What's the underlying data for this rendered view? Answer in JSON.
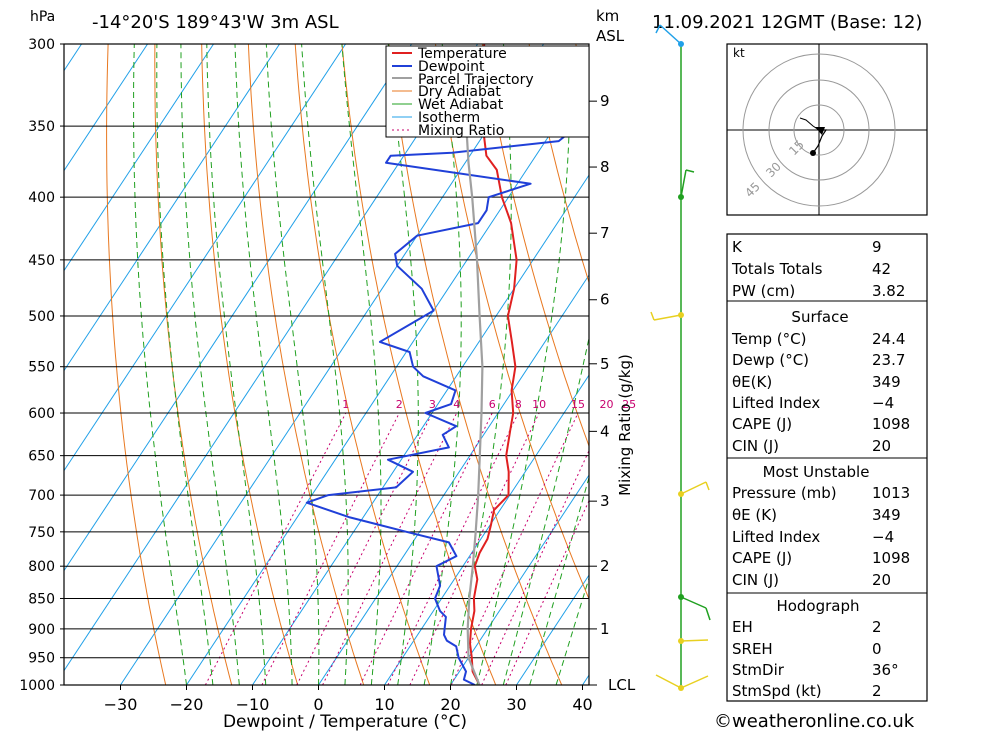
{
  "header": {
    "hpa_label": "hPa",
    "location": "-14°20'S 189°43'W 3m ASL",
    "km_label": "km",
    "asl_label": "ASL",
    "datetime": "11.09.2021 12GMT (Base: 12)"
  },
  "chart_data": {
    "type": "line",
    "title": "-14°20'S 189°43'W 3m ASL",
    "xlabel": "Dewpoint / Temperature (°C)",
    "ylabel": "hPa",
    "right_axis_label": "Mixing Ratio (g/kg)",
    "xlim": [
      -40,
      40
    ],
    "ylim": [
      1000,
      300
    ],
    "x_ticks": [
      "−30",
      "−20",
      "−10",
      "0",
      "10",
      "20",
      "30",
      "40"
    ],
    "x_tick_values": [
      -30,
      -20,
      -10,
      0,
      10,
      20,
      30,
      40
    ],
    "pressure_ticks": [
      300,
      350,
      400,
      450,
      500,
      550,
      600,
      650,
      700,
      750,
      800,
      850,
      900,
      950,
      1000
    ],
    "km_ticks": [
      {
        "label": "9",
        "p": 334
      },
      {
        "label": "8",
        "p": 378
      },
      {
        "label": "7",
        "p": 428
      },
      {
        "label": "6",
        "p": 485
      },
      {
        "label": "5",
        "p": 547
      },
      {
        "label": "4",
        "p": 621
      },
      {
        "label": "3",
        "p": 708
      },
      {
        "label": "2",
        "p": 800
      },
      {
        "label": "1",
        "p": 900
      },
      {
        "label": "LCL",
        "p": 1000
      }
    ],
    "mixing_ratio_labels": [
      "1",
      "2",
      "3",
      "4",
      "6",
      "8",
      "10",
      "15",
      "20",
      "25"
    ],
    "mixing_ratio_values": [
      1,
      2,
      3,
      4,
      6,
      8,
      10,
      15,
      20,
      25
    ],
    "legend": [
      "Temperature",
      "Dewpoint",
      "Parcel Trajectory",
      "Dry Adiabat",
      "Wet Adiabat",
      "Isotherm",
      "Mixing Ratio"
    ],
    "series": [
      {
        "name": "Temperature",
        "color": "#e02020",
        "points": [
          [
            1000,
            24.4
          ],
          [
            975,
            22
          ],
          [
            950,
            20.5
          ],
          [
            925,
            18.8
          ],
          [
            900,
            17.5
          ],
          [
            870,
            16.2
          ],
          [
            850,
            14.9
          ],
          [
            820,
            13.5
          ],
          [
            800,
            11.8
          ],
          [
            780,
            11.2
          ],
          [
            760,
            11
          ],
          [
            740,
            10.1
          ],
          [
            720,
            9.1
          ],
          [
            700,
            9.8
          ],
          [
            670,
            7.5
          ],
          [
            650,
            5.5
          ],
          [
            620,
            3.6
          ],
          [
            600,
            2.3
          ],
          [
            575,
            -0.2
          ],
          [
            550,
            -2
          ],
          [
            525,
            -5
          ],
          [
            500,
            -8.2
          ],
          [
            475,
            -10
          ],
          [
            450,
            -12.5
          ],
          [
            420,
            -17
          ],
          [
            400,
            -21
          ],
          [
            380,
            -24.5
          ],
          [
            370,
            -27.5
          ],
          [
            350,
            -31
          ],
          [
            325,
            -35
          ],
          [
            300,
            -39
          ]
        ]
      },
      {
        "name": "Dewpoint",
        "color": "#2040d8",
        "points": [
          [
            1000,
            23.7
          ],
          [
            990,
            21.5
          ],
          [
            975,
            21
          ],
          [
            950,
            18.5
          ],
          [
            930,
            17
          ],
          [
            920,
            15
          ],
          [
            910,
            14
          ],
          [
            900,
            13.5
          ],
          [
            880,
            12.5
          ],
          [
            870,
            11
          ],
          [
            860,
            10
          ],
          [
            850,
            9
          ],
          [
            830,
            8.5
          ],
          [
            800,
            6
          ],
          [
            785,
            8
          ],
          [
            765,
            5.5
          ],
          [
            750,
            -2
          ],
          [
            730,
            -12
          ],
          [
            710,
            -20
          ],
          [
            700,
            -17.5
          ],
          [
            690,
            -8
          ],
          [
            670,
            -7
          ],
          [
            655,
            -12
          ],
          [
            640,
            -4
          ],
          [
            625,
            -6.2
          ],
          [
            615,
            -5
          ],
          [
            600,
            -11
          ],
          [
            590,
            -8
          ],
          [
            575,
            -8.7
          ],
          [
            560,
            -15
          ],
          [
            550,
            -17.5
          ],
          [
            535,
            -19.5
          ],
          [
            525,
            -25
          ],
          [
            495,
            -20
          ],
          [
            475,
            -24
          ],
          [
            455,
            -30
          ],
          [
            445,
            -31.5
          ],
          [
            430,
            -30
          ],
          [
            420,
            -22
          ],
          [
            410,
            -22
          ],
          [
            400,
            -23
          ],
          [
            390,
            -18
          ],
          [
            375,
            -42
          ],
          [
            370,
            -42
          ],
          [
            368,
            -33
          ],
          [
            360,
            -18
          ],
          [
            345,
            -16
          ],
          [
            340,
            -10
          ],
          [
            330,
            -19.5
          ],
          [
            320,
            -19
          ],
          [
            300,
            -18
          ]
        ]
      },
      {
        "name": "Parcel Trajectory",
        "color": "#a0a0a0",
        "points": [
          [
            1000,
            24.4
          ],
          [
            950,
            20
          ],
          [
            900,
            17
          ],
          [
            850,
            14.2
          ],
          [
            800,
            11.5
          ],
          [
            750,
            8.5
          ],
          [
            700,
            5.2
          ],
          [
            650,
            1.5
          ],
          [
            600,
            -2.5
          ],
          [
            550,
            -7
          ],
          [
            500,
            -12.5
          ],
          [
            450,
            -18.5
          ],
          [
            400,
            -25.5
          ],
          [
            375,
            -29.5
          ],
          [
            350,
            -33.5
          ]
        ]
      }
    ]
  },
  "legend_labels": [
    "Temperature",
    "Dewpoint",
    "Parcel Trajectory",
    "Dry Adiabat",
    "Wet Adiabat",
    "Isotherm",
    "Mixing Ratio"
  ],
  "hodograph": {
    "unit": "kt",
    "ring_labels": [
      "15",
      "30",
      "45"
    ]
  },
  "indices": [
    {
      "label": "K",
      "value": "9"
    },
    {
      "label": "Totals Totals",
      "value": "42"
    },
    {
      "label": "PW (cm)",
      "value": "3.82"
    }
  ],
  "surface": {
    "title": "Surface",
    "rows": [
      {
        "label": "Temp (°C)",
        "value": "24.4"
      },
      {
        "label": "Dewp (°C)",
        "value": "23.7"
      },
      {
        "label": "θE(K)",
        "value": "349"
      },
      {
        "label": "Lifted Index",
        "value": "−4"
      },
      {
        "label": "CAPE (J)",
        "value": "1098"
      },
      {
        "label": "CIN (J)",
        "value": "20"
      }
    ]
  },
  "most_unstable": {
    "title": "Most Unstable",
    "rows": [
      {
        "label": "Pressure (mb)",
        "value": "1013"
      },
      {
        "label": "θE (K)",
        "value": "349"
      },
      {
        "label": "Lifted Index",
        "value": "−4"
      },
      {
        "label": "CAPE (J)",
        "value": "1098"
      },
      {
        "label": "CIN (J)",
        "value": "20"
      }
    ]
  },
  "hodo_stats": {
    "title": "Hodograph",
    "rows": [
      {
        "label": "EH",
        "value": "2"
      },
      {
        "label": "SREH",
        "value": "0"
      },
      {
        "label": "StmDir",
        "value": "36°"
      },
      {
        "label": "StmSpd (kt)",
        "value": "2"
      }
    ]
  },
  "copyright": "©weatheronline.co.uk",
  "colors": {
    "temperature": "#e02020",
    "dewpoint": "#2040d8",
    "parcel": "#a0a0a0",
    "dry_adiabat": "#e87820",
    "wet_adiabat": "#20a020",
    "isotherm": "#20a0e8",
    "mixing": "#c8006e"
  }
}
